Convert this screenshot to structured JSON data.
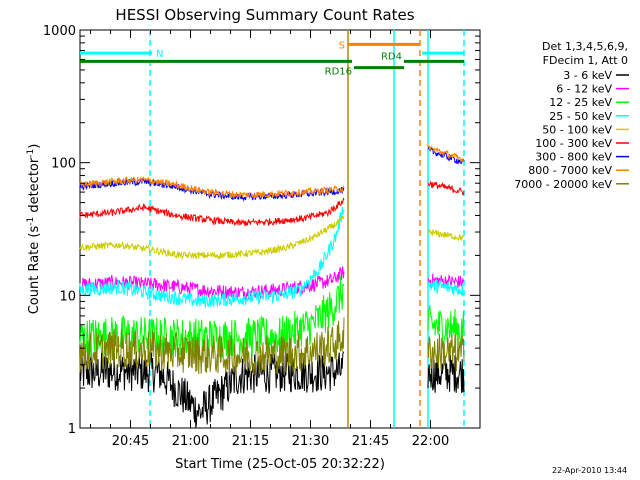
{
  "chart_data": {
    "type": "line",
    "title": "HESSI Observing Summary Count Rates",
    "xlabel": "Start Time (25-Oct-05 20:32:22)",
    "ylabel_main": "Count Rate (s",
    "ylabel_sup1": "-1",
    "ylabel_mid": " detector",
    "ylabel_sup2": "-1",
    "ylabel_end": ")",
    "y_scale": "log",
    "ylim": [
      1,
      1000
    ],
    "y_ticks": [
      {
        "value": 1,
        "label": "1"
      },
      {
        "value": 10,
        "label": "10"
      },
      {
        "value": 100,
        "label": "100"
      },
      {
        "value": 1000,
        "label": "1000"
      }
    ],
    "xlim_minutes": [
      0,
      100
    ],
    "x_ticks": [
      {
        "minutes": 12.63,
        "label": "20:45"
      },
      {
        "minutes": 27.63,
        "label": "21:00"
      },
      {
        "minutes": 42.63,
        "label": "21:15"
      },
      {
        "minutes": 57.63,
        "label": "21:30"
      },
      {
        "minutes": 72.63,
        "label": "21:45"
      },
      {
        "minutes": 87.63,
        "label": "22:00"
      }
    ],
    "legend_placement": "right",
    "legend_header": [
      "Det 1,3,4,5,6,9,",
      "FDecim 1, Att 0"
    ],
    "series": [
      {
        "name": "3 - 6 keV",
        "color": "#000000",
        "pre": [
          [
            0,
            2.6
          ],
          [
            10,
            2.7
          ],
          [
            20,
            2.6
          ],
          [
            30,
            1.3
          ],
          [
            40,
            2.5
          ],
          [
            50,
            2.6
          ],
          [
            60,
            2.6
          ],
          [
            66,
            2.7
          ]
        ],
        "post": [
          [
            87,
            2.6
          ],
          [
            96,
            2.6
          ]
        ]
      },
      {
        "name": "6 - 12 keV",
        "color": "#ff00ff",
        "pre": [
          [
            0,
            12
          ],
          [
            10,
            12.5
          ],
          [
            20,
            12
          ],
          [
            30,
            11
          ],
          [
            40,
            10.5
          ],
          [
            50,
            11
          ],
          [
            58,
            12
          ],
          [
            63,
            13
          ],
          [
            66,
            15
          ]
        ],
        "post": [
          [
            87,
            13
          ],
          [
            96,
            12.5
          ]
        ]
      },
      {
        "name": "12 - 25 keV",
        "color": "#00ff00",
        "pre": [
          [
            0,
            4.8
          ],
          [
            10,
            5
          ],
          [
            20,
            4.9
          ],
          [
            30,
            4.8
          ],
          [
            40,
            4.8
          ],
          [
            50,
            4.9
          ],
          [
            58,
            6
          ],
          [
            63,
            8
          ],
          [
            66,
            11
          ]
        ],
        "post": [
          [
            87,
            6
          ],
          [
            96,
            5.5
          ]
        ]
      },
      {
        "name": "25 - 50 keV",
        "color": "#00ffff",
        "pre": [
          [
            0,
            11
          ],
          [
            10,
            11.5
          ],
          [
            20,
            10
          ],
          [
            30,
            9
          ],
          [
            40,
            9.5
          ],
          [
            50,
            10
          ],
          [
            55,
            11
          ],
          [
            60,
            16
          ],
          [
            64,
            28
          ],
          [
            66,
            48
          ]
        ],
        "post": [
          [
            87,
            12
          ],
          [
            96,
            11
          ]
        ]
      },
      {
        "name": "50 - 100 keV",
        "color": "#cccc00",
        "pre": [
          [
            0,
            23
          ],
          [
            10,
            24
          ],
          [
            18,
            22
          ],
          [
            25,
            20
          ],
          [
            35,
            20
          ],
          [
            45,
            21
          ],
          [
            52,
            23
          ],
          [
            58,
            27
          ],
          [
            63,
            33
          ],
          [
            66,
            38
          ]
        ],
        "post": [
          [
            87,
            30
          ],
          [
            96,
            27
          ]
        ]
      },
      {
        "name": "100 - 300 keV",
        "color": "#ff0000",
        "pre": [
          [
            0,
            40
          ],
          [
            8,
            42
          ],
          [
            16,
            46
          ],
          [
            24,
            40
          ],
          [
            32,
            37
          ],
          [
            40,
            35
          ],
          [
            48,
            36
          ],
          [
            56,
            38
          ],
          [
            62,
            42
          ],
          [
            66,
            52
          ]
        ],
        "post": [
          [
            87,
            70
          ],
          [
            96,
            60
          ]
        ]
      },
      {
        "name": "300 - 800 keV",
        "color": "#0000ff",
        "pre": [
          [
            0,
            66
          ],
          [
            8,
            70
          ],
          [
            16,
            72
          ],
          [
            24,
            66
          ],
          [
            32,
            58
          ],
          [
            40,
            55
          ],
          [
            48,
            56
          ],
          [
            56,
            58
          ],
          [
            62,
            60
          ],
          [
            66,
            62
          ]
        ],
        "post": [
          [
            87,
            125
          ],
          [
            96,
            100
          ]
        ]
      },
      {
        "name": "800 - 7000 keV",
        "color": "#ff8000",
        "pre": [
          [
            0,
            68
          ],
          [
            8,
            72
          ],
          [
            16,
            74
          ],
          [
            24,
            68
          ],
          [
            32,
            60
          ],
          [
            40,
            57
          ],
          [
            48,
            58
          ],
          [
            56,
            60
          ],
          [
            62,
            62
          ],
          [
            66,
            64
          ]
        ],
        "post": [
          [
            87,
            130
          ],
          [
            96,
            105
          ]
        ]
      },
      {
        "name": "7000 - 20000 keV",
        "color": "#808000",
        "pre": [
          [
            0,
            3.7
          ],
          [
            10,
            4
          ],
          [
            20,
            3.8
          ],
          [
            30,
            3.6
          ],
          [
            40,
            3.5
          ],
          [
            50,
            3.6
          ],
          [
            58,
            3.8
          ],
          [
            63,
            4.2
          ],
          [
            66,
            5
          ]
        ],
        "post": [
          [
            87,
            3.8
          ],
          [
            96,
            3.6
          ]
        ]
      }
    ],
    "flag_bars": [
      {
        "label": "N",
        "color": "#00ffff",
        "y_value": 670,
        "x_start": 0,
        "x_end": 18
      },
      {
        "label": "S",
        "color": "#ff8000",
        "y_value": 780,
        "x_start": 67,
        "x_end": 85
      },
      {
        "label": "",
        "color": "#00ffff",
        "y_value": 670,
        "x_start": 85.5,
        "x_end": 96
      },
      {
        "label": "",
        "color": "#008000",
        "y_value": 580,
        "x_start": 0,
        "x_end": 68
      },
      {
        "label": "RD4",
        "color": "#008000",
        "y_value": 580,
        "x_start": 81,
        "x_end": 96
      },
      {
        "label": "RD16",
        "color": "#008000",
        "y_value": 520,
        "x_start": 68.5,
        "x_end": 81
      }
    ],
    "vlines": [
      {
        "minutes": 17.5,
        "color": "#00ffff",
        "style": "dashed"
      },
      {
        "minutes": 67,
        "color": "#b8860b",
        "style": "solid"
      },
      {
        "minutes": 78.5,
        "color": "#00ffff",
        "style": "solid"
      },
      {
        "minutes": 85,
        "color": "#ff8000",
        "style": "dashed"
      },
      {
        "minutes": 87,
        "color": "#00ffff",
        "style": "solid"
      },
      {
        "minutes": 96,
        "color": "#00ffff",
        "style": "dashed"
      }
    ],
    "legend_text_color": "#000000",
    "background": "#ffffff"
  },
  "footer": {
    "timestamp": "22-Apr-2010 13:44"
  }
}
